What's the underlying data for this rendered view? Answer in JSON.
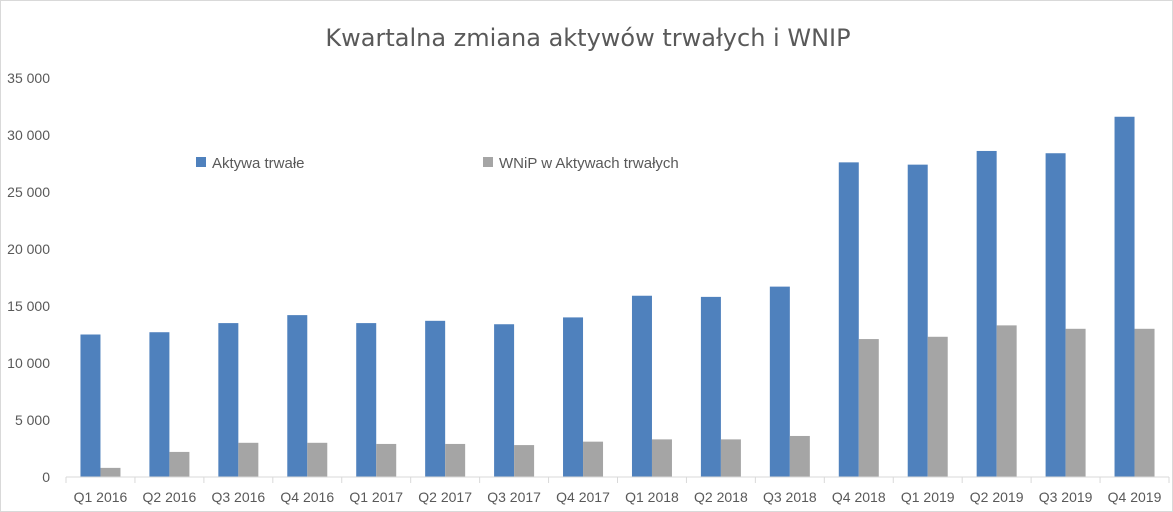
{
  "chart_data": {
    "type": "bar",
    "title": "Kwartalna zmiana aktywów trwałych i WNIP",
    "xlabel": "",
    "ylabel": "",
    "ylim": [
      0,
      35000
    ],
    "yticks": [
      0,
      5000,
      10000,
      15000,
      20000,
      25000,
      30000,
      35000
    ],
    "ytick_labels": [
      "0",
      "5 000",
      "10 000",
      "15 000",
      "20 000",
      "25 000",
      "30 000",
      "35 000"
    ],
    "grid": false,
    "legend_position": "top-left, inside plot",
    "categories": [
      "Q1 2016",
      "Q2 2016",
      "Q3 2016",
      "Q4 2016",
      "Q1 2017",
      "Q2 2017",
      "Q3 2017",
      "Q4 2017",
      "Q1 2018",
      "Q2 2018",
      "Q3 2018",
      "Q4 2018",
      "Q1 2019",
      "Q2 2019",
      "Q3 2019",
      "Q4 2019"
    ],
    "series": [
      {
        "name": "Aktywa trwałe",
        "color": "#4f81bd",
        "values": [
          12500,
          12700,
          13500,
          14200,
          13500,
          13700,
          13400,
          14000,
          15900,
          15800,
          16700,
          27600,
          27400,
          28600,
          28400,
          31600
        ]
      },
      {
        "name": "WNiP w Aktywach trwałych",
        "color": "#a5a5a5",
        "values": [
          800,
          2200,
          3000,
          3000,
          2900,
          2900,
          2800,
          3100,
          3300,
          3300,
          3600,
          12100,
          12300,
          13300,
          13000,
          13000
        ]
      }
    ]
  }
}
